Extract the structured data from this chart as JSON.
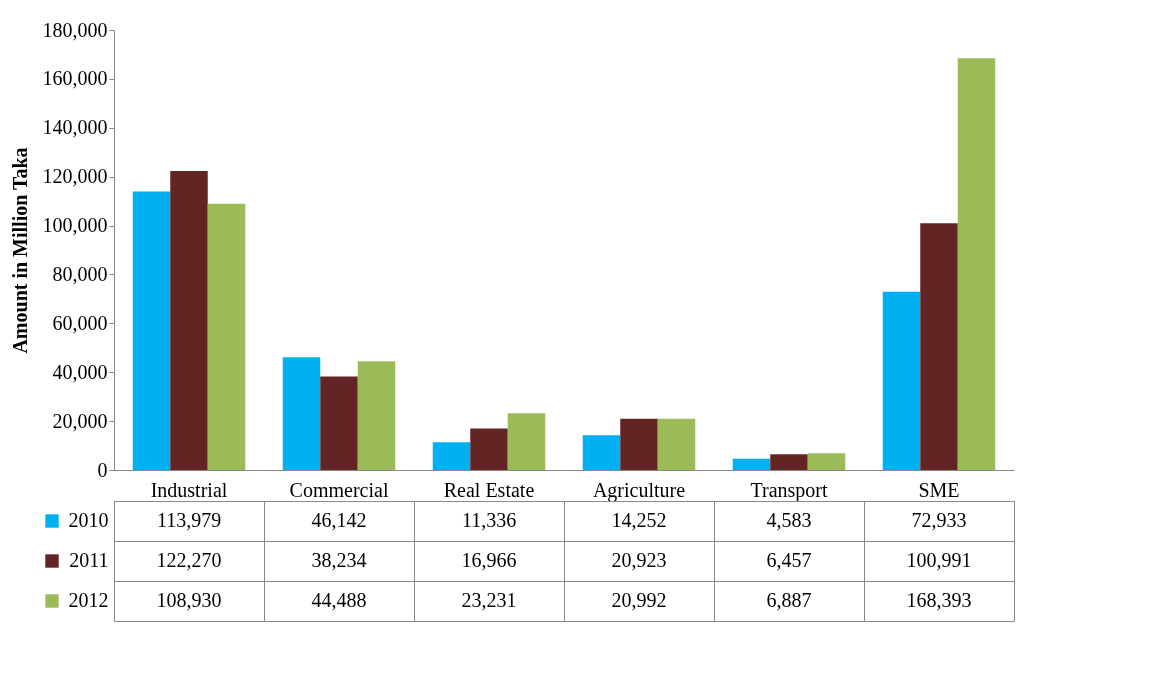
{
  "chart_data": {
    "type": "bar",
    "ylabel": "Amount in Million Taka",
    "categories": [
      "Industrial",
      "Commercial",
      "Real Estate",
      "Agriculture",
      "Transport",
      "SME"
    ],
    "series": [
      {
        "name": "2010",
        "color": "#00b0f0",
        "values": [
          113979,
          46142,
          11336,
          14252,
          4583,
          72933
        ],
        "value_labels": [
          "113,979",
          "46,142",
          "11,336",
          "14,252",
          "4,583",
          "72,933"
        ]
      },
      {
        "name": "2011",
        "color": "#632523",
        "values": [
          122270,
          38234,
          16966,
          20923,
          6457,
          100991
        ],
        "value_labels": [
          "122,270",
          "38,234",
          "16,966",
          "20,923",
          "6,457",
          "100,991"
        ]
      },
      {
        "name": "2012",
        "color": "#9bbb59",
        "values": [
          108930,
          44488,
          23231,
          20992,
          6887,
          168393
        ],
        "value_labels": [
          "108,930",
          "44,488",
          "23,231",
          "20,992",
          "6,887",
          "168,393"
        ]
      }
    ],
    "ylim": [
      0,
      180000
    ],
    "yticks": [
      {
        "value": 0,
        "label": "0"
      },
      {
        "value": 20000,
        "label": "20,000"
      },
      {
        "value": 40000,
        "label": "40,000"
      },
      {
        "value": 60000,
        "label": "60,000"
      },
      {
        "value": 80000,
        "label": "80,000"
      },
      {
        "value": 100000,
        "label": "100,000"
      },
      {
        "value": 120000,
        "label": "120,000"
      },
      {
        "value": 140000,
        "label": "140,000"
      },
      {
        "value": 160000,
        "label": "160,000"
      },
      {
        "value": 180000,
        "label": "180,000"
      }
    ],
    "grid": false,
    "legend": "bottom"
  }
}
